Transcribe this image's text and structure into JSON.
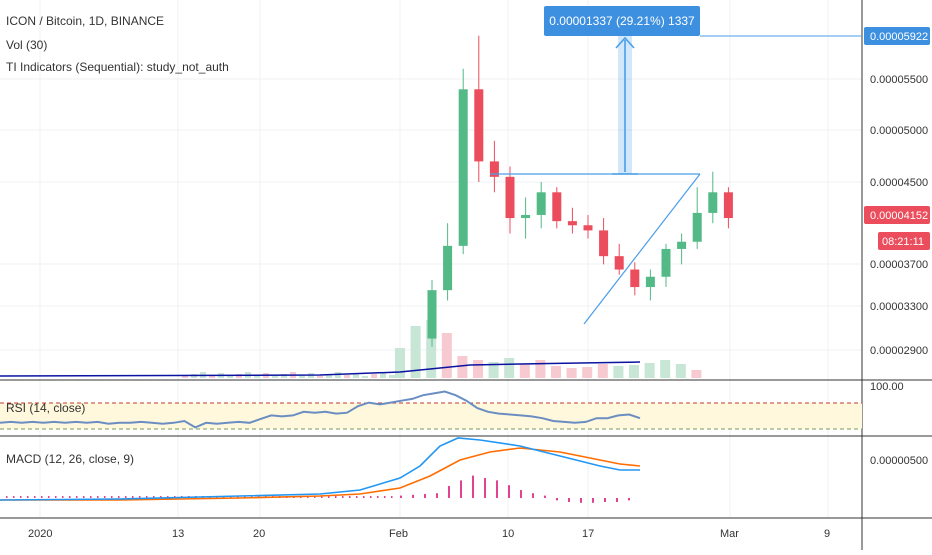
{
  "header": {
    "symbol_line": "ICON / Bitcoin, 1D, BINANCE",
    "vol_line": "Vol (30)",
    "ti_line": "TI Indicators (Sequential): study_not_auth"
  },
  "measure": {
    "label": "0.00001337 (29.21%) 1337"
  },
  "price_axis": {
    "ticks": [
      "0.00005500",
      "0.00005000",
      "0.00004500",
      "0.00003700",
      "0.00003300",
      "0.00002900"
    ],
    "tick_values": [
      5.5e-05,
      5e-05,
      4.5e-05,
      3.7e-05,
      3.3e-05,
      2.9e-05
    ],
    "target_label": "0.00005922",
    "target_value": 5.922e-05,
    "last_label": "0.00004152",
    "last_value": 4.152e-05,
    "countdown": "08:21:11"
  },
  "rsi": {
    "label": "RSI (14, close)",
    "axis_label": "100.00"
  },
  "macd": {
    "label": "MACD (12, 26, close, 9)",
    "axis_label": "0.00000500"
  },
  "time_axis": {
    "labels": [
      "2020",
      "13",
      "20",
      "Feb",
      "10",
      "17",
      "Mar",
      "9"
    ]
  },
  "colors": {
    "up": "#53b987",
    "down": "#eb4d5c",
    "volume_up": "#c8e6d6",
    "volume_down": "#f7c9d0",
    "volume_ma": "#0b14a0",
    "rsi_line": "#6b8ec2",
    "rsi_band": "#fff8dc",
    "macd_line": "#2196f3",
    "signal_line": "#ff6d00",
    "histogram": "#e0438f",
    "drawing": "#4a9ee8",
    "last_price_badge": "#eb4d5c"
  },
  "chart_data": {
    "type": "candlestick",
    "candles": [
      {
        "date": "2020-02-04",
        "open": 2.98e-05,
        "high": 3.55e-05,
        "low": 2.9e-05,
        "close": 3.45e-05
      },
      {
        "date": "2020-02-05",
        "open": 3.45e-05,
        "high": 4.1e-05,
        "low": 3.35e-05,
        "close": 3.88e-05
      },
      {
        "date": "2020-02-06",
        "open": 3.88e-05,
        "high": 5.6e-05,
        "low": 3.8e-05,
        "close": 5.4e-05
      },
      {
        "date": "2020-02-07",
        "open": 5.4e-05,
        "high": 5.92e-05,
        "low": 4.5e-05,
        "close": 4.7e-05
      },
      {
        "date": "2020-02-08",
        "open": 4.7e-05,
        "high": 4.9e-05,
        "low": 4.4e-05,
        "close": 4.55e-05
      },
      {
        "date": "2020-02-09",
        "open": 4.55e-05,
        "high": 4.65e-05,
        "low": 4e-05,
        "close": 4.15e-05
      },
      {
        "date": "2020-02-10",
        "open": 4.15e-05,
        "high": 4.35e-05,
        "low": 3.95e-05,
        "close": 4.18e-05
      },
      {
        "date": "2020-02-11",
        "open": 4.18e-05,
        "high": 4.5e-05,
        "low": 4.05e-05,
        "close": 4.4e-05
      },
      {
        "date": "2020-02-12",
        "open": 4.4e-05,
        "high": 4.45e-05,
        "low": 4.05e-05,
        "close": 4.12e-05
      },
      {
        "date": "2020-02-13",
        "open": 4.12e-05,
        "high": 4.25e-05,
        "low": 4e-05,
        "close": 4.08e-05
      },
      {
        "date": "2020-02-14",
        "open": 4.08e-05,
        "high": 4.18e-05,
        "low": 3.95e-05,
        "close": 4.03e-05
      },
      {
        "date": "2020-02-15",
        "open": 4.03e-05,
        "high": 4.15e-05,
        "low": 3.7e-05,
        "close": 3.78e-05
      },
      {
        "date": "2020-02-16",
        "open": 3.78e-05,
        "high": 3.9e-05,
        "low": 3.6e-05,
        "close": 3.65e-05
      },
      {
        "date": "2020-02-17",
        "open": 3.65e-05,
        "high": 3.72e-05,
        "low": 3.4e-05,
        "close": 3.48e-05
      },
      {
        "date": "2020-02-18",
        "open": 3.48e-05,
        "high": 3.65e-05,
        "low": 3.35e-05,
        "close": 3.58e-05
      },
      {
        "date": "2020-02-19",
        "open": 3.58e-05,
        "high": 3.9e-05,
        "low": 3.48e-05,
        "close": 3.85e-05
      },
      {
        "date": "2020-02-20",
        "open": 3.85e-05,
        "high": 4e-05,
        "low": 3.7e-05,
        "close": 3.92e-05
      },
      {
        "date": "2020-02-21",
        "open": 3.92e-05,
        "high": 4.45e-05,
        "low": 3.85e-05,
        "close": 4.2e-05
      },
      {
        "date": "2020-02-22",
        "open": 4.2e-05,
        "high": 4.6e-05,
        "low": 4.1e-05,
        "close": 4.4e-05
      },
      {
        "date": "2020-02-23",
        "open": 4.4e-05,
        "high": 4.45e-05,
        "low": 4.05e-05,
        "close": 4.15e-05
      }
    ],
    "volume_up_days": [
      "2020-02-04",
      "2020-02-05",
      "2020-02-06",
      "2020-02-11",
      "2020-02-18",
      "2020-02-19",
      "2020-02-20",
      "2020-02-21",
      "2020-02-22"
    ],
    "rsi_values": [
      50,
      51,
      50,
      51,
      50,
      51,
      50,
      51,
      50,
      51,
      49,
      50,
      50,
      51,
      50,
      49,
      50,
      52,
      45,
      50,
      49,
      50,
      51,
      50,
      54,
      58,
      57,
      58,
      62,
      61,
      62,
      60,
      61,
      68,
      72,
      70,
      72,
      74,
      76,
      80,
      82,
      84,
      80,
      74,
      66,
      62,
      60,
      59,
      58,
      57,
      55,
      52,
      51,
      50,
      51,
      55,
      55,
      58,
      59,
      55
    ],
    "macd_hist_values": [
      0.3,
      0.4,
      0.5,
      0.6,
      1.5,
      2.2,
      2.8,
      2.5,
      2.2,
      1.6,
      1.0,
      0.6,
      0.3,
      -0.3,
      -0.5,
      -0.6,
      -0.6,
      -0.5,
      -0.5,
      -0.3
    ],
    "target": 5.922e-05,
    "last": 4.152e-05
  }
}
